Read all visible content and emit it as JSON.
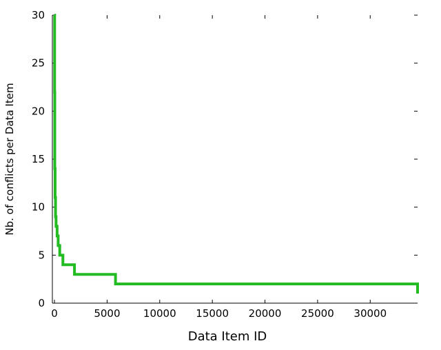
{
  "chart_data": {
    "type": "line",
    "title": "",
    "xlabel": "Data Item ID",
    "ylabel": "Nb. of conflicts per Data Item",
    "xlim": [
      -200,
      34500
    ],
    "ylim": [
      0,
      30
    ],
    "x_ticks": [
      0,
      5000,
      10000,
      15000,
      20000,
      25000,
      30000
    ],
    "y_ticks": [
      0,
      5,
      10,
      15,
      20,
      25,
      30
    ],
    "x_tick_labels": [
      "0",
      "5000",
      "10000",
      "15000",
      "20000",
      "25000",
      "30000"
    ],
    "y_tick_labels": [
      "0",
      "5",
      "10",
      "15",
      "20",
      "25",
      "30"
    ],
    "grid": false,
    "legend": "none",
    "series": [
      {
        "color": "#22bb22",
        "step": true,
        "x": [
          0,
          15,
          30,
          60,
          100,
          150,
          250,
          350,
          500,
          800,
          1900,
          5800,
          34500
        ],
        "y": [
          30,
          22,
          14,
          11,
          9,
          8,
          7,
          6,
          5,
          4,
          3,
          2,
          1
        ]
      }
    ]
  }
}
